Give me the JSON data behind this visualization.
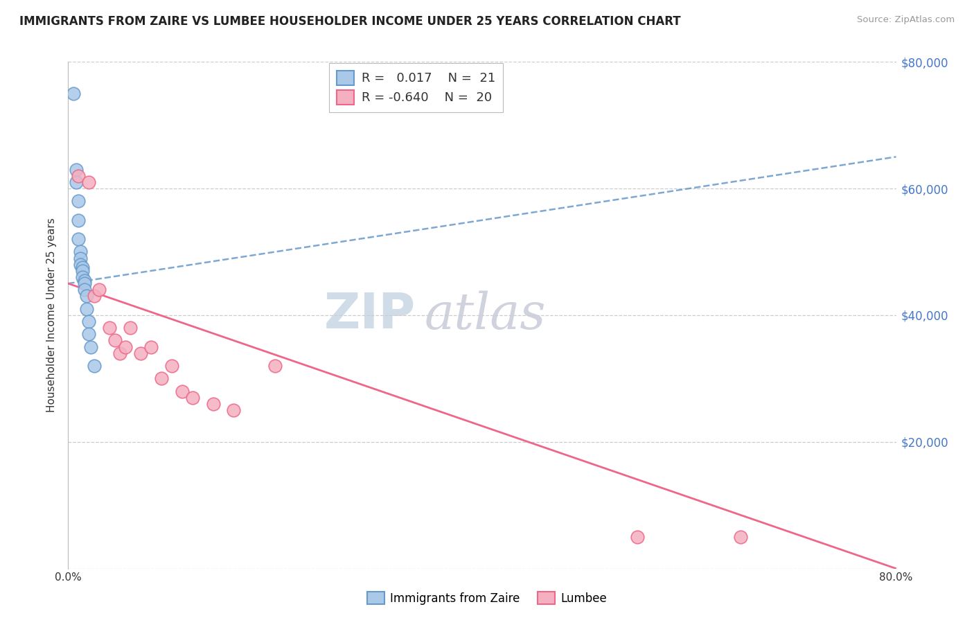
{
  "title": "IMMIGRANTS FROM ZAIRE VS LUMBEE HOUSEHOLDER INCOME UNDER 25 YEARS CORRELATION CHART",
  "source": "Source: ZipAtlas.com",
  "ylabel": "Householder Income Under 25 years",
  "legend_labels": [
    "Immigrants from Zaire",
    "Lumbee"
  ],
  "blue_R": 0.017,
  "blue_N": 21,
  "pink_R": -0.64,
  "pink_N": 20,
  "blue_color": "#aac8e8",
  "pink_color": "#f4b0c0",
  "blue_line_color": "#6699cc",
  "pink_line_color": "#ee6688",
  "xmin": 0.0,
  "xmax": 0.8,
  "ymin": 0,
  "ymax": 80000,
  "blue_scatter_x": [
    0.005,
    0.008,
    0.008,
    0.01,
    0.01,
    0.01,
    0.012,
    0.012,
    0.012,
    0.014,
    0.014,
    0.014,
    0.016,
    0.016,
    0.016,
    0.018,
    0.018,
    0.02,
    0.02,
    0.022,
    0.025
  ],
  "blue_scatter_y": [
    75000,
    63000,
    61000,
    58000,
    55000,
    52000,
    50000,
    49000,
    48000,
    47500,
    47000,
    46000,
    45500,
    45000,
    44000,
    43000,
    41000,
    39000,
    37000,
    35000,
    32000
  ],
  "pink_scatter_x": [
    0.01,
    0.02,
    0.025,
    0.03,
    0.04,
    0.045,
    0.05,
    0.055,
    0.06,
    0.07,
    0.08,
    0.09,
    0.1,
    0.11,
    0.12,
    0.14,
    0.16,
    0.2,
    0.55,
    0.65
  ],
  "pink_scatter_y": [
    62000,
    61000,
    43000,
    44000,
    38000,
    36000,
    34000,
    35000,
    38000,
    34000,
    35000,
    30000,
    32000,
    28000,
    27000,
    26000,
    25000,
    32000,
    5000,
    5000
  ],
  "blue_trend_x": [
    0.0,
    0.8
  ],
  "blue_trend_y": [
    45000,
    65000
  ],
  "pink_trend_x": [
    0.0,
    0.8
  ],
  "pink_trend_y": [
    45000,
    0
  ],
  "watermark_zip": "ZIP",
  "watermark_atlas": "atlas",
  "background_color": "#ffffff",
  "grid_color": "#cccccc",
  "right_axis_color": "#4477cc"
}
